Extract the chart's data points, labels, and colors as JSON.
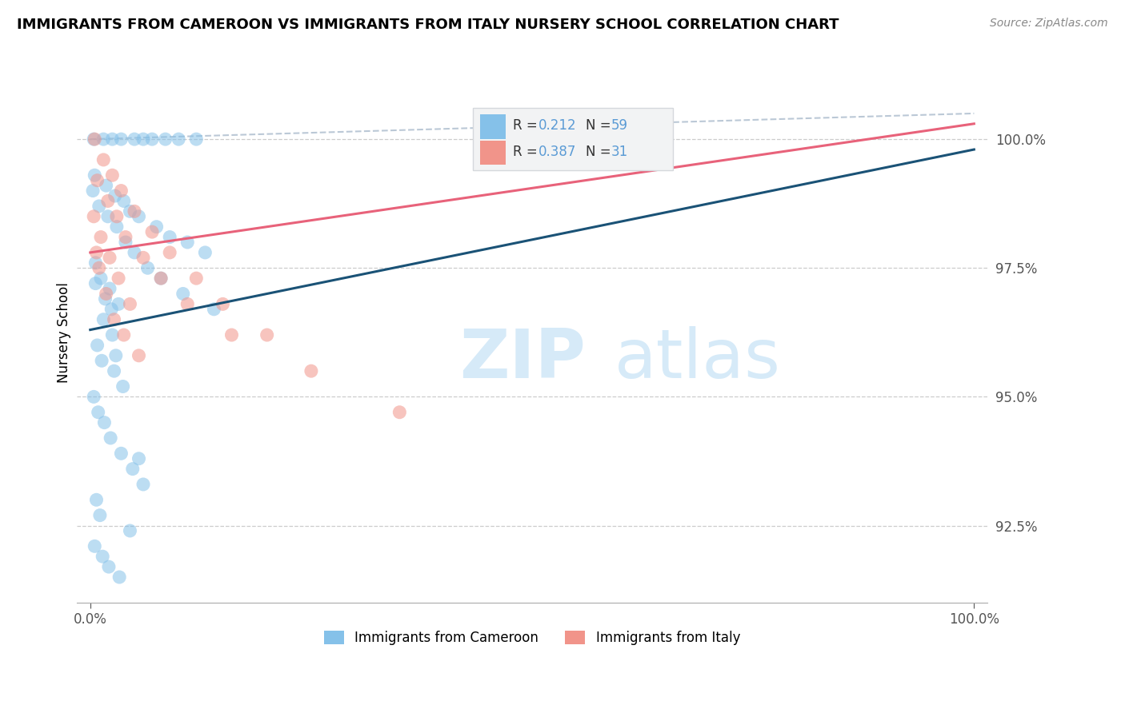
{
  "title": "IMMIGRANTS FROM CAMEROON VS IMMIGRANTS FROM ITALY NURSERY SCHOOL CORRELATION CHART",
  "source": "Source: ZipAtlas.com",
  "ylabel": "Nursery School",
  "xlim": [
    -1.5,
    101.5
  ],
  "ylim": [
    91.0,
    101.5
  ],
  "yticks": [
    92.5,
    95.0,
    97.5,
    100.0
  ],
  "ytick_labels": [
    "92.5%",
    "95.0%",
    "97.5%",
    "100.0%"
  ],
  "xticks": [
    0.0,
    100.0
  ],
  "xtick_labels": [
    "0.0%",
    "100.0%"
  ],
  "cameroon_color": "#85C1E9",
  "italy_color": "#F1948A",
  "blue_line_color": "#1A5276",
  "pink_line_color": "#E8627A",
  "gray_dash_color": "#AABBCC",
  "legend_box_color": "#F2F3F4",
  "legend_border_color": "#D5D8DC",
  "tick_label_color": "#5B9BD5",
  "watermark_color": "#D6EAF8",
  "cam_x": [
    0.4,
    1.5,
    2.5,
    3.5,
    5.0,
    6.0,
    7.0,
    8.5,
    10.0,
    12.0,
    0.5,
    1.8,
    2.8,
    3.8,
    4.5,
    5.5,
    7.5,
    9.0,
    11.0,
    13.0,
    0.3,
    1.0,
    2.0,
    3.0,
    4.0,
    5.0,
    6.5,
    8.0,
    10.5,
    14.0,
    0.6,
    1.2,
    2.2,
    3.2,
    1.5,
    2.5,
    0.8,
    1.3,
    2.7,
    3.7,
    0.4,
    0.9,
    1.6,
    2.3,
    3.5,
    4.8,
    6.0,
    0.7,
    1.1,
    4.5,
    0.5,
    1.4,
    2.1,
    3.3,
    5.5,
    0.6,
    1.7,
    2.4,
    2.9
  ],
  "cam_y": [
    100.0,
    100.0,
    100.0,
    100.0,
    100.0,
    100.0,
    100.0,
    100.0,
    100.0,
    100.0,
    99.3,
    99.1,
    98.9,
    98.8,
    98.6,
    98.5,
    98.3,
    98.1,
    98.0,
    97.8,
    99.0,
    98.7,
    98.5,
    98.3,
    98.0,
    97.8,
    97.5,
    97.3,
    97.0,
    96.7,
    97.6,
    97.3,
    97.1,
    96.8,
    96.5,
    96.2,
    96.0,
    95.7,
    95.5,
    95.2,
    95.0,
    94.7,
    94.5,
    94.2,
    93.9,
    93.6,
    93.3,
    93.0,
    92.7,
    92.4,
    92.1,
    91.9,
    91.7,
    91.5,
    93.8,
    97.2,
    96.9,
    96.7,
    95.8
  ],
  "ita_x": [
    0.5,
    1.5,
    2.5,
    3.5,
    5.0,
    7.0,
    9.0,
    12.0,
    15.0,
    20.0,
    0.8,
    2.0,
    3.0,
    4.0,
    6.0,
    8.0,
    11.0,
    16.0,
    25.0,
    35.0,
    0.4,
    1.2,
    2.2,
    3.2,
    4.5,
    1.0,
    1.8,
    2.7,
    0.7,
    3.8,
    5.5
  ],
  "ita_y": [
    100.0,
    99.6,
    99.3,
    99.0,
    98.6,
    98.2,
    97.8,
    97.3,
    96.8,
    96.2,
    99.2,
    98.8,
    98.5,
    98.1,
    97.7,
    97.3,
    96.8,
    96.2,
    95.5,
    94.7,
    98.5,
    98.1,
    97.7,
    97.3,
    96.8,
    97.5,
    97.0,
    96.5,
    97.8,
    96.2,
    95.8
  ],
  "blue_line": [
    [
      0,
      100
    ],
    [
      96.3,
      99.8
    ]
  ],
  "pink_line": [
    [
      0,
      100
    ],
    [
      97.8,
      100.3
    ]
  ],
  "gray_dash_line": [
    [
      0,
      100
    ],
    [
      100.0,
      100.5
    ]
  ]
}
